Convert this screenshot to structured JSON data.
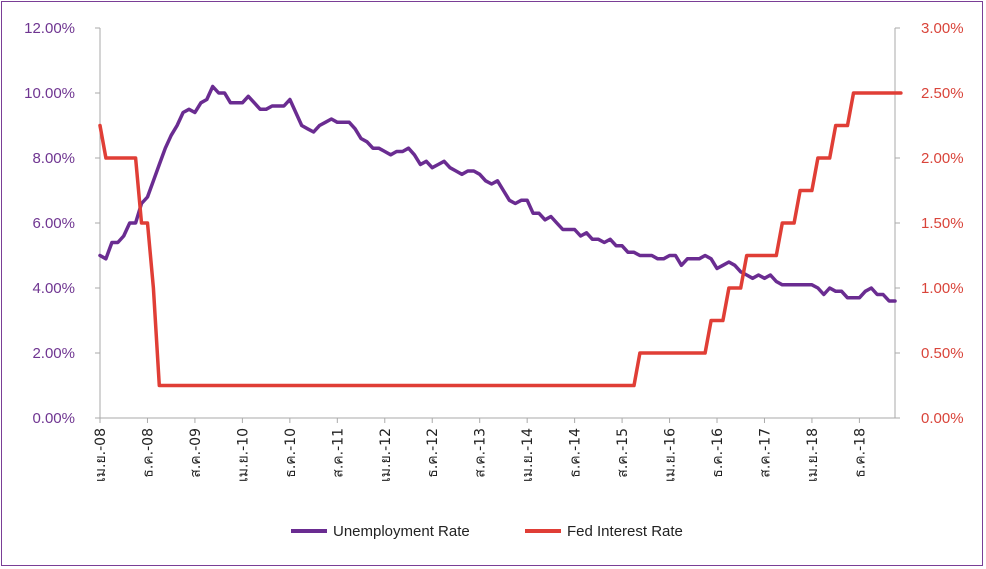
{
  "chart_data": {
    "type": "line",
    "title": "",
    "colors": {
      "unemployment": "#6a2c91",
      "fed": "#e03e36",
      "left_axis": "#6f3591",
      "right_axis": "#d9443a",
      "frame": "#7a3e96"
    },
    "x_tick_labels": [
      "เม.ย.-08",
      "ธ.ค.-08",
      "ส.ค.-09",
      "เม.ย.-10",
      "ธ.ค.-10",
      "ส.ค.-11",
      "เม.ย.-12",
      "ธ.ค.-12",
      "ส.ค.-13",
      "เม.ย.-14",
      "ธ.ค.-14",
      "ส.ค.-15",
      "เม.ย.-16",
      "ธ.ค.-16",
      "ส.ค.-17",
      "เม.ย.-18",
      "ธ.ค.-18"
    ],
    "y_left": {
      "ylim": [
        0,
        12
      ],
      "ticks": [
        "0.00%",
        "2.00%",
        "4.00%",
        "6.00%",
        "8.00%",
        "10.00%",
        "12.00%"
      ]
    },
    "y_right": {
      "ylim": [
        0,
        3
      ],
      "ticks": [
        "0.00%",
        "0.50%",
        "1.00%",
        "1.50%",
        "2.00%",
        "2.50%",
        "3.00%"
      ]
    },
    "series": [
      {
        "name": "Unemployment Rate",
        "axis": "left",
        "start": "2008-04",
        "values": [
          5.0,
          4.9,
          5.4,
          5.4,
          5.6,
          6.0,
          6.0,
          6.6,
          6.8,
          7.3,
          7.8,
          8.3,
          8.7,
          9.0,
          9.4,
          9.5,
          9.4,
          9.7,
          9.8,
          10.2,
          10.0,
          10.0,
          9.7,
          9.7,
          9.7,
          9.9,
          9.7,
          9.5,
          9.5,
          9.6,
          9.6,
          9.6,
          9.8,
          9.4,
          9.0,
          8.9,
          8.8,
          9.0,
          9.1,
          9.2,
          9.1,
          9.1,
          9.1,
          8.9,
          8.6,
          8.5,
          8.3,
          8.3,
          8.2,
          8.1,
          8.2,
          8.2,
          8.3,
          8.1,
          7.8,
          7.9,
          7.7,
          7.8,
          7.9,
          7.7,
          7.6,
          7.5,
          7.6,
          7.6,
          7.5,
          7.3,
          7.2,
          7.3,
          7.0,
          6.7,
          6.6,
          6.7,
          6.7,
          6.3,
          6.3,
          6.1,
          6.2,
          6.0,
          5.8,
          5.8,
          5.8,
          5.6,
          5.7,
          5.5,
          5.5,
          5.4,
          5.5,
          5.3,
          5.3,
          5.1,
          5.1,
          5.0,
          5.0,
          5.0,
          4.9,
          4.9,
          5.0,
          5.0,
          4.7,
          4.9,
          4.9,
          4.9,
          5.0,
          4.9,
          4.6,
          4.7,
          4.8,
          4.7,
          4.5,
          4.4,
          4.3,
          4.4,
          4.3,
          4.4,
          4.2,
          4.1,
          4.1,
          4.1,
          4.1,
          4.1,
          4.1,
          4.0,
          3.8,
          4.0,
          3.9,
          3.9,
          3.7,
          3.7,
          3.7,
          3.9,
          4.0,
          3.8,
          3.8,
          3.6,
          3.6
        ]
      },
      {
        "name": "Fed Interest Rate",
        "axis": "right",
        "start": "2008-04",
        "values": [
          2.25,
          2.0,
          2.0,
          2.0,
          2.0,
          2.0,
          2.0,
          1.5,
          1.5,
          1.0,
          0.25,
          0.25,
          0.25,
          0.25,
          0.25,
          0.25,
          0.25,
          0.25,
          0.25,
          0.25,
          0.25,
          0.25,
          0.25,
          0.25,
          0.25,
          0.25,
          0.25,
          0.25,
          0.25,
          0.25,
          0.25,
          0.25,
          0.25,
          0.25,
          0.25,
          0.25,
          0.25,
          0.25,
          0.25,
          0.25,
          0.25,
          0.25,
          0.25,
          0.25,
          0.25,
          0.25,
          0.25,
          0.25,
          0.25,
          0.25,
          0.25,
          0.25,
          0.25,
          0.25,
          0.25,
          0.25,
          0.25,
          0.25,
          0.25,
          0.25,
          0.25,
          0.25,
          0.25,
          0.25,
          0.25,
          0.25,
          0.25,
          0.25,
          0.25,
          0.25,
          0.25,
          0.25,
          0.25,
          0.25,
          0.25,
          0.25,
          0.25,
          0.25,
          0.25,
          0.25,
          0.25,
          0.25,
          0.25,
          0.25,
          0.25,
          0.25,
          0.25,
          0.25,
          0.25,
          0.25,
          0.25,
          0.5,
          0.5,
          0.5,
          0.5,
          0.5,
          0.5,
          0.5,
          0.5,
          0.5,
          0.5,
          0.5,
          0.5,
          0.75,
          0.75,
          0.75,
          1.0,
          1.0,
          1.0,
          1.25,
          1.25,
          1.25,
          1.25,
          1.25,
          1.25,
          1.5,
          1.5,
          1.5,
          1.75,
          1.75,
          1.75,
          2.0,
          2.0,
          2.0,
          2.25,
          2.25,
          2.25,
          2.5,
          2.5,
          2.5,
          2.5,
          2.5,
          2.5,
          2.5,
          2.5,
          2.5
        ]
      }
    ],
    "legend": {
      "placement": "bottom",
      "entries": [
        "Unemployment Rate",
        "Fed Interest Rate"
      ]
    }
  }
}
